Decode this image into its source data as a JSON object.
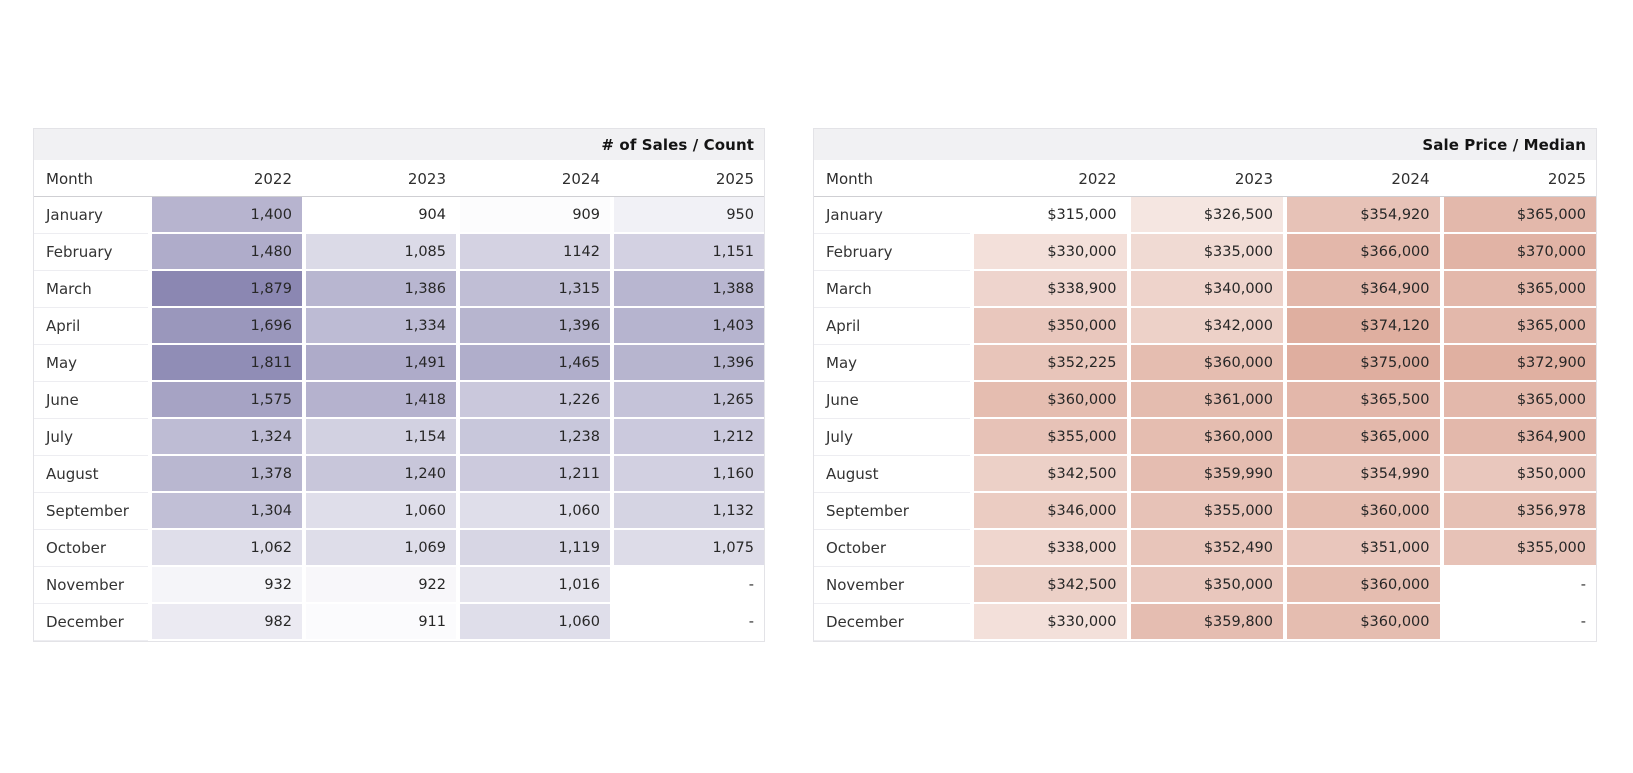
{
  "chart_data": [
    {
      "type": "heatmap",
      "title": "# of Sales / Count",
      "row_label_header": "Month",
      "columns": [
        "2022",
        "2023",
        "2024",
        "2025"
      ],
      "rows": [
        "January",
        "February",
        "March",
        "April",
        "May",
        "June",
        "July",
        "August",
        "September",
        "October",
        "November",
        "December"
      ],
      "display": [
        [
          "1,400",
          "904",
          "909",
          "950"
        ],
        [
          "1,480",
          "1,085",
          "1142",
          "1,151"
        ],
        [
          "1,879",
          "1,386",
          "1,315",
          "1,388"
        ],
        [
          "1,696",
          "1,334",
          "1,396",
          "1,403"
        ],
        [
          "1,811",
          "1,491",
          "1,465",
          "1,396"
        ],
        [
          "1,575",
          "1,418",
          "1,226",
          "1,265"
        ],
        [
          "1,324",
          "1,154",
          "1,238",
          "1,212"
        ],
        [
          "1,378",
          "1,240",
          "1,211",
          "1,160"
        ],
        [
          "1,304",
          "1,060",
          "1,060",
          "1,132"
        ],
        [
          "1,062",
          "1,069",
          "1,119",
          "1,075"
        ],
        [
          "932",
          "922",
          "1,016",
          "-"
        ],
        [
          "982",
          "911",
          "1,060",
          "-"
        ]
      ],
      "values": [
        [
          1400,
          904,
          909,
          950
        ],
        [
          1480,
          1085,
          1142,
          1151
        ],
        [
          1879,
          1386,
          1315,
          1388
        ],
        [
          1696,
          1334,
          1396,
          1403
        ],
        [
          1811,
          1491,
          1465,
          1396
        ],
        [
          1575,
          1418,
          1226,
          1265
        ],
        [
          1324,
          1154,
          1238,
          1212
        ],
        [
          1378,
          1240,
          1211,
          1160
        ],
        [
          1304,
          1060,
          1060,
          1132
        ],
        [
          1062,
          1069,
          1119,
          1075
        ],
        [
          932,
          922,
          1016,
          null
        ],
        [
          982,
          911,
          1060,
          null
        ]
      ],
      "missing_value_label": "-",
      "color_base": "#8b87b2",
      "scale": {
        "min": 904,
        "max": 1879
      },
      "legend_position": "none",
      "grid": false
    },
    {
      "type": "heatmap",
      "title": "Sale Price / Median",
      "row_label_header": "Month",
      "columns": [
        "2022",
        "2023",
        "2024",
        "2025"
      ],
      "rows": [
        "January",
        "February",
        "March",
        "April",
        "May",
        "June",
        "July",
        "August",
        "September",
        "October",
        "November",
        "December"
      ],
      "display": [
        [
          "$315,000",
          "$326,500",
          "$354,920",
          "$365,000"
        ],
        [
          "$330,000",
          "$335,000",
          "$366,000",
          "$370,000"
        ],
        [
          "$338,900",
          "$340,000",
          "$364,900",
          "$365,000"
        ],
        [
          "$350,000",
          "$342,000",
          "$374,120",
          "$365,000"
        ],
        [
          "$352,225",
          "$360,000",
          "$375,000",
          "$372,900"
        ],
        [
          "$360,000",
          "$361,000",
          "$365,500",
          "$365,000"
        ],
        [
          "$355,000",
          "$360,000",
          "$365,000",
          "$364,900"
        ],
        [
          "$342,500",
          "$359,990",
          "$354,990",
          "$350,000"
        ],
        [
          "$346,000",
          "$355,000",
          "$360,000",
          "$356,978"
        ],
        [
          "$338,000",
          "$352,490",
          "$351,000",
          "$355,000"
        ],
        [
          "$342,500",
          "$350,000",
          "$360,000",
          "-"
        ],
        [
          "$330,000",
          "$359,800",
          "$360,000",
          "-"
        ]
      ],
      "values": [
        [
          315000,
          326500,
          354920,
          365000
        ],
        [
          330000,
          335000,
          366000,
          370000
        ],
        [
          338900,
          340000,
          364900,
          365000
        ],
        [
          350000,
          342000,
          374120,
          365000
        ],
        [
          352225,
          360000,
          375000,
          372900
        ],
        [
          360000,
          361000,
          365500,
          365000
        ],
        [
          355000,
          360000,
          365000,
          364900
        ],
        [
          342500,
          359990,
          354990,
          350000
        ],
        [
          346000,
          355000,
          360000,
          356978
        ],
        [
          338000,
          352490,
          351000,
          355000
        ],
        [
          342500,
          350000,
          360000,
          null
        ],
        [
          330000,
          359800,
          360000,
          null
        ]
      ],
      "missing_value_label": "-",
      "color_base": "#dfae9f",
      "scale": {
        "min": 315000,
        "max": 375000
      },
      "legend_position": "none",
      "grid": false
    }
  ]
}
